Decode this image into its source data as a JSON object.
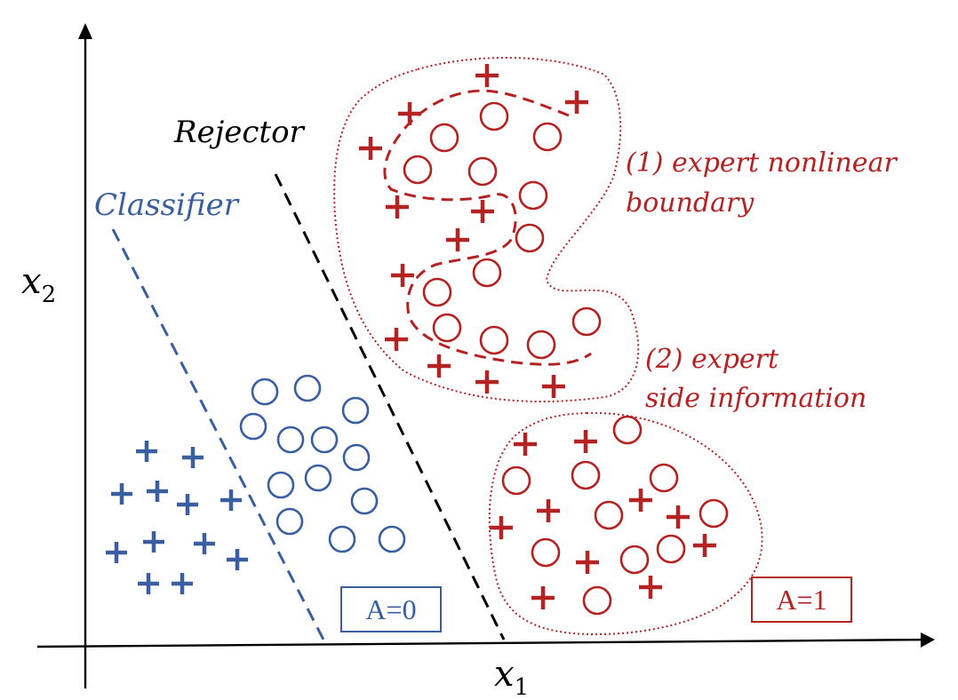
{
  "axes": {
    "x_label_var": "x",
    "x_label_sub": "1",
    "y_label_var": "x",
    "y_label_sub": "2"
  },
  "labels": {
    "rejector": "Rejector",
    "classifier": "Classifier",
    "expert_boundary_line1": "(1) expert nonlinear",
    "expert_boundary_line2": "boundary",
    "expert_side_line1": "(2) expert",
    "expert_side_line2": "side information",
    "group_a0": "A=0",
    "group_a1": "A=1"
  },
  "colors": {
    "blue": "#3a5fa0",
    "red": "#b52222",
    "black": "#000000"
  }
}
